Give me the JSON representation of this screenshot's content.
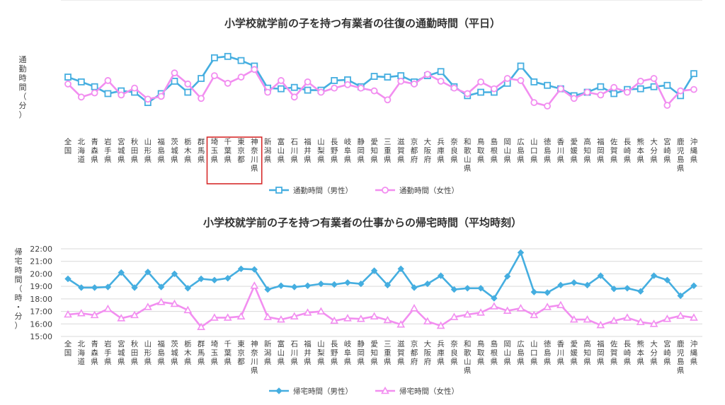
{
  "colors": {
    "male": "#45aee0",
    "female": "#f28ef0",
    "highlight": "#d62b2b"
  },
  "chart_data": [
    {
      "type": "line",
      "title": "小学校就学前の子を持つ有業者の往復の通勤時間（平日）",
      "ylabel": "通勤時間（分）",
      "ylim": [
        0,
        120
      ],
      "yticks": [
        "0",
        "30",
        "60",
        "90",
        "120"
      ],
      "grid": true,
      "legend": "bottom",
      "marker": [
        "square",
        "circle"
      ],
      "highlight_categories": [
        "埼玉県",
        "千葉県",
        "東京都",
        "神奈川県"
      ],
      "categories": [
        "全国",
        "北海道",
        "青森県",
        "岩手県",
        "宮城県",
        "秋田県",
        "山形県",
        "福島県",
        "茨城県",
        "栃木県",
        "群馬県",
        "埼玉県",
        "千葉県",
        "東京都",
        "神奈川県",
        "新潟県",
        "富山県",
        "石川県",
        "福井県",
        "山梨県",
        "長野県",
        "岐阜県",
        "静岡県",
        "愛知県",
        "三重県",
        "滋賀県",
        "京都府",
        "大阪府",
        "兵庫県",
        "奈良県",
        "和歌山県",
        "鳥取県",
        "島根県",
        "岡山県",
        "広島県",
        "山口県",
        "徳島県",
        "香川県",
        "愛媛県",
        "高知県",
        "福岡県",
        "佐賀県",
        "長崎県",
        "熊本県",
        "大分県",
        "宮崎県",
        "鹿児島県",
        "沖縄県"
      ],
      "series": [
        {
          "name": "通勤時間（男性）",
          "values": [
            82,
            75,
            68,
            58,
            62,
            60,
            45,
            58,
            76,
            60,
            80,
            110,
            112,
            106,
            98,
            66,
            65,
            67,
            63,
            63,
            77,
            78,
            68,
            83,
            82,
            84,
            75,
            84,
            90,
            68,
            55,
            60,
            60,
            73,
            98,
            75,
            70,
            65,
            55,
            60,
            68,
            58,
            64,
            65,
            68,
            70,
            55,
            87
          ]
        },
        {
          "name": "通勤時間（女性）",
          "values": [
            72,
            53,
            59,
            77,
            56,
            66,
            50,
            54,
            88,
            72,
            51,
            84,
            73,
            82,
            93,
            60,
            77,
            53,
            75,
            60,
            66,
            71,
            66,
            62,
            49,
            76,
            72,
            86,
            76,
            66,
            58,
            75,
            65,
            80,
            77,
            45,
            40,
            65,
            51,
            60,
            56,
            67,
            60,
            76,
            80,
            41,
            62,
            64
          ]
        }
      ]
    },
    {
      "type": "line",
      "title": "小学校就学前の子を持つ有業者の仕事からの帰宅時間（平均時刻）",
      "ylabel": "帰宅時間（時・分）",
      "ylim": [
        "15:00",
        "22:00"
      ],
      "yticks": [
        "15:00",
        "16:00",
        "17:00",
        "18:00",
        "19:00",
        "20:00",
        "21:00",
        "22:00"
      ],
      "grid": true,
      "legend": "bottom",
      "marker": [
        "diamond",
        "triangle"
      ],
      "categories": [
        "全国",
        "北海道",
        "青森県",
        "岩手県",
        "宮城県",
        "秋田県",
        "山形県",
        "福島県",
        "茨城県",
        "栃木県",
        "群馬県",
        "埼玉県",
        "千葉県",
        "東京都",
        "神奈川県",
        "新潟県",
        "富山県",
        "石川県",
        "福井県",
        "山梨県",
        "長野県",
        "岐阜県",
        "静岡県",
        "愛知県",
        "三重県",
        "滋賀県",
        "京都府",
        "大阪府",
        "兵庫県",
        "奈良県",
        "和歌山県",
        "鳥取県",
        "島根県",
        "岡山県",
        "広島県",
        "山口県",
        "徳島県",
        "香川県",
        "愛媛県",
        "高知県",
        "福岡県",
        "佐賀県",
        "長崎県",
        "熊本県",
        "大分県",
        "宮崎県",
        "鹿児島県",
        "沖縄県"
      ],
      "series": [
        {
          "name": "帰宅時間（男性）",
          "values": [
            "19:36",
            "18:54",
            "18:54",
            "18:57",
            "20:06",
            "18:54",
            "20:09",
            "18:57",
            "20:00",
            "18:51",
            "19:36",
            "19:30",
            "19:39",
            "20:24",
            "20:21",
            "18:45",
            "19:03",
            "18:57",
            "19:03",
            "19:12",
            "19:09",
            "19:18",
            "19:12",
            "20:15",
            "19:06",
            "20:24",
            "18:54",
            "19:12",
            "19:51",
            "18:45",
            "18:51",
            "18:51",
            "18:03",
            "19:48",
            "21:42",
            "18:33",
            "18:30",
            "19:06",
            "19:18",
            "19:06",
            "19:51",
            "18:48",
            "18:51",
            "18:36",
            "19:51",
            "19:30",
            "18:15",
            "19:03"
          ]
        },
        {
          "name": "帰宅時間（女性）",
          "values": [
            "16:45",
            "16:51",
            "16:42",
            "17:12",
            "16:27",
            "16:42",
            "17:21",
            "17:45",
            "17:36",
            "17:06",
            "15:45",
            "16:30",
            "16:30",
            "16:36",
            "19:03",
            "16:33",
            "16:21",
            "16:36",
            "16:54",
            "17:00",
            "16:15",
            "16:27",
            "16:24",
            "16:36",
            "16:18",
            "15:57",
            "17:15",
            "16:12",
            "15:51",
            "16:33",
            "16:45",
            "16:54",
            "17:24",
            "17:03",
            "17:15",
            "16:42",
            "17:21",
            "17:30",
            "16:21",
            "16:21",
            "15:54",
            "16:15",
            "16:30",
            "16:09",
            "16:00",
            "16:24",
            "16:39",
            "16:30"
          ]
        }
      ]
    }
  ]
}
